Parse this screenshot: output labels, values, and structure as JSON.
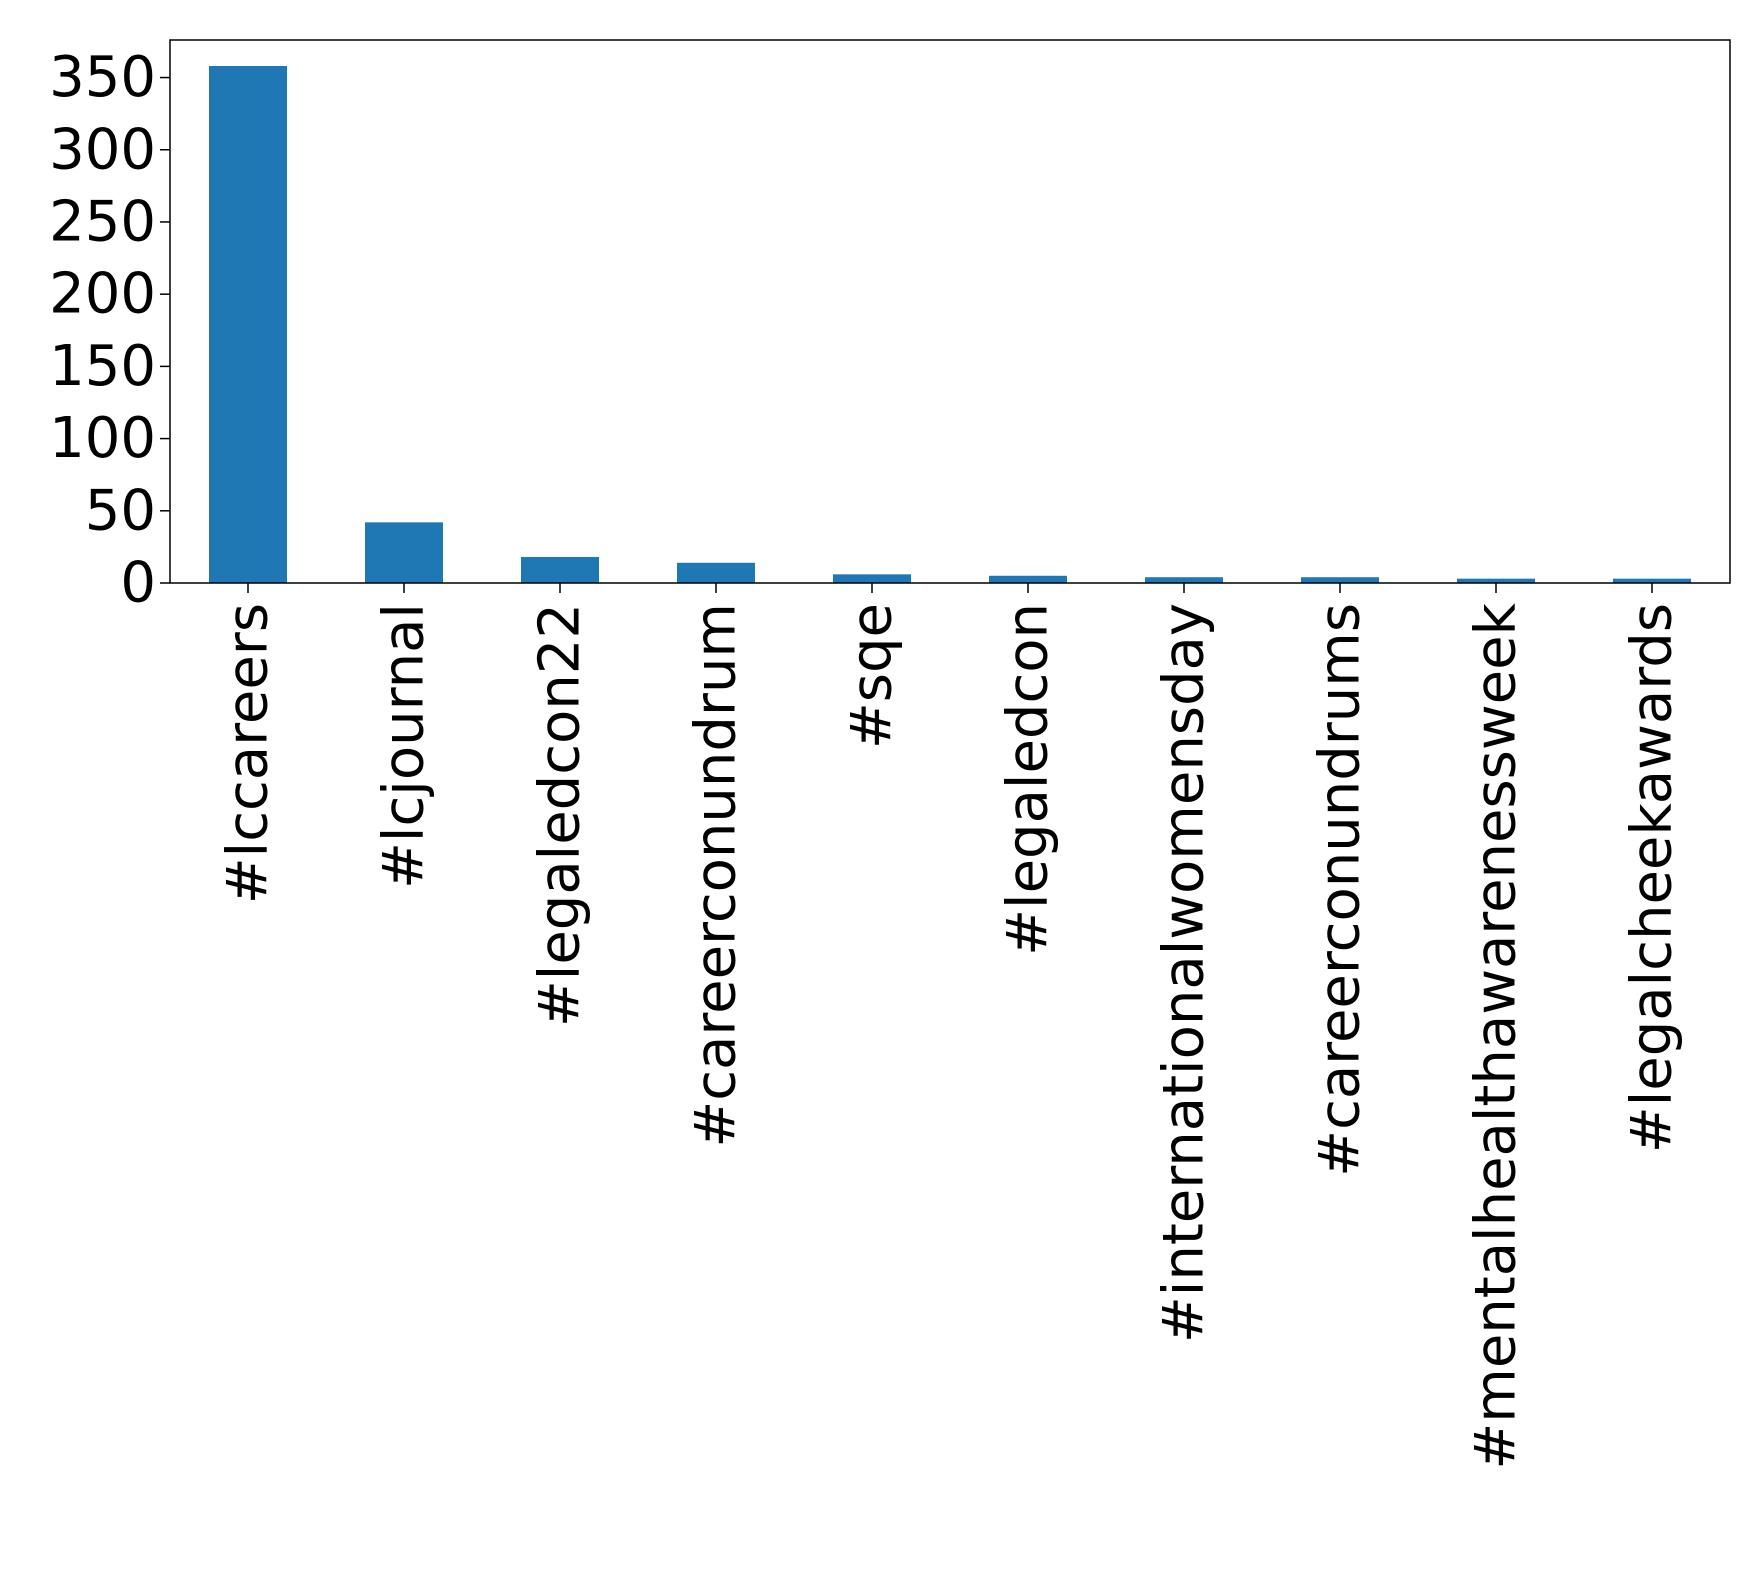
{
  "chart_data": {
    "type": "bar",
    "categories": [
      "#lccareers",
      "#lcjournal",
      "#legaledcon22",
      "#careerconundrum",
      "#sqe",
      "#legaledcon",
      "#internationalwomensday",
      "#careerconundrums",
      "#mentalhealthawarenessweek",
      "#legalcheekawards"
    ],
    "values": [
      358,
      42,
      18,
      14,
      6,
      5,
      4,
      4,
      3,
      3
    ],
    "title": "",
    "xlabel": "",
    "ylabel": "",
    "ylim": [
      0,
      376
    ],
    "yticks": [
      0,
      50,
      100,
      150,
      200,
      250,
      300,
      350
    ],
    "grid": false,
    "bar_color": "#1f77b4"
  }
}
